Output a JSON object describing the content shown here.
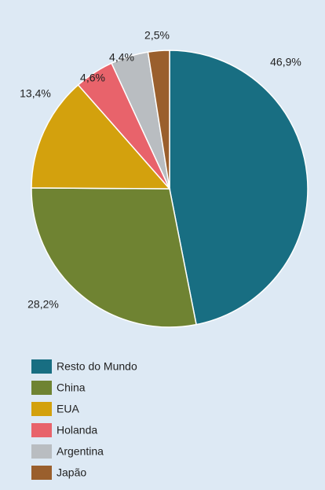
{
  "chart_data": {
    "type": "pie",
    "categories": [
      "Resto do Mundo",
      "China",
      "EUA",
      "Holanda",
      "Argentina",
      "Japão"
    ],
    "values": [
      46.9,
      28.2,
      13.4,
      4.6,
      4.4,
      2.5
    ],
    "value_labels": [
      "46,9%",
      "28,2%",
      "13,4%",
      "4,6%",
      "4,4%",
      "2,5%"
    ],
    "colors": [
      "#186e82",
      "#6f8332",
      "#d3a10d",
      "#e8636b",
      "#b9bdc1",
      "#9a5f2d"
    ]
  }
}
